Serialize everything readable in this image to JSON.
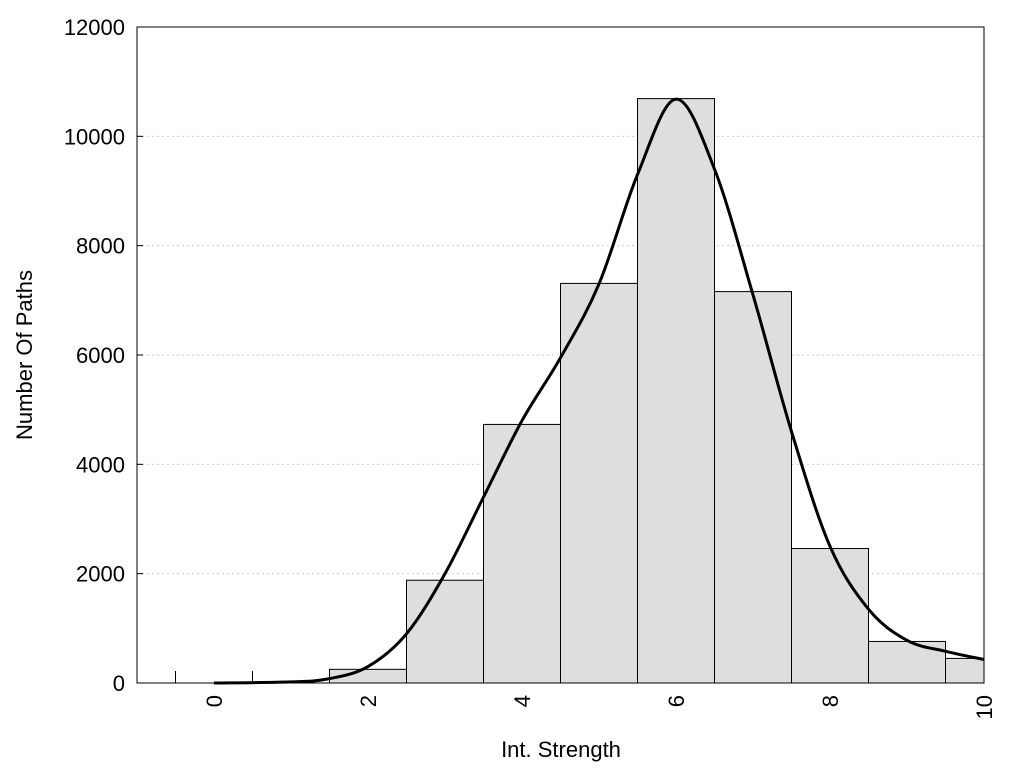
{
  "chart_data": {
    "type": "bar",
    "title": "",
    "xlabel": "Int. Strength",
    "ylabel": "Number Of Paths",
    "xlim": [
      -1,
      10
    ],
    "ylim": [
      0,
      12000
    ],
    "x_ticks": [
      0,
      2,
      4,
      6,
      8,
      10
    ],
    "y_ticks": [
      0,
      2000,
      4000,
      6000,
      8000,
      10000,
      12000
    ],
    "grid": "horizontal dotted",
    "legend": "none",
    "bars": [
      {
        "x": 0,
        "value": 0
      },
      {
        "x": 1,
        "value": 0
      },
      {
        "x": 2,
        "value": 250
      },
      {
        "x": 3,
        "value": 1880
      },
      {
        "x": 4,
        "value": 4730
      },
      {
        "x": 5,
        "value": 7310
      },
      {
        "x": 6,
        "value": 10690
      },
      {
        "x": 7,
        "value": 7160
      },
      {
        "x": 8,
        "value": 2460
      },
      {
        "x": 9,
        "value": 760
      },
      {
        "x": 10,
        "value": 450
      }
    ],
    "density_curve": [
      {
        "x": 0,
        "y": 0
      },
      {
        "x": 1,
        "y": 20
      },
      {
        "x": 1.5,
        "y": 80
      },
      {
        "x": 2,
        "y": 300
      },
      {
        "x": 2.5,
        "y": 900
      },
      {
        "x": 3,
        "y": 2000
      },
      {
        "x": 3.5,
        "y": 3400
      },
      {
        "x": 4,
        "y": 4800
      },
      {
        "x": 4.5,
        "y": 5950
      },
      {
        "x": 5,
        "y": 7300
      },
      {
        "x": 5.5,
        "y": 9300
      },
      {
        "x": 6,
        "y": 10680
      },
      {
        "x": 6.5,
        "y": 9400
      },
      {
        "x": 7,
        "y": 7100
      },
      {
        "x": 7.5,
        "y": 4600
      },
      {
        "x": 8,
        "y": 2500
      },
      {
        "x": 8.5,
        "y": 1350
      },
      {
        "x": 9,
        "y": 780
      },
      {
        "x": 9.5,
        "y": 580
      },
      {
        "x": 10,
        "y": 430
      }
    ],
    "colors": {
      "bar_fill": "#dedede",
      "bar_stroke": "#000000",
      "curve": "#000000",
      "grid": "#cfcfcf"
    }
  }
}
